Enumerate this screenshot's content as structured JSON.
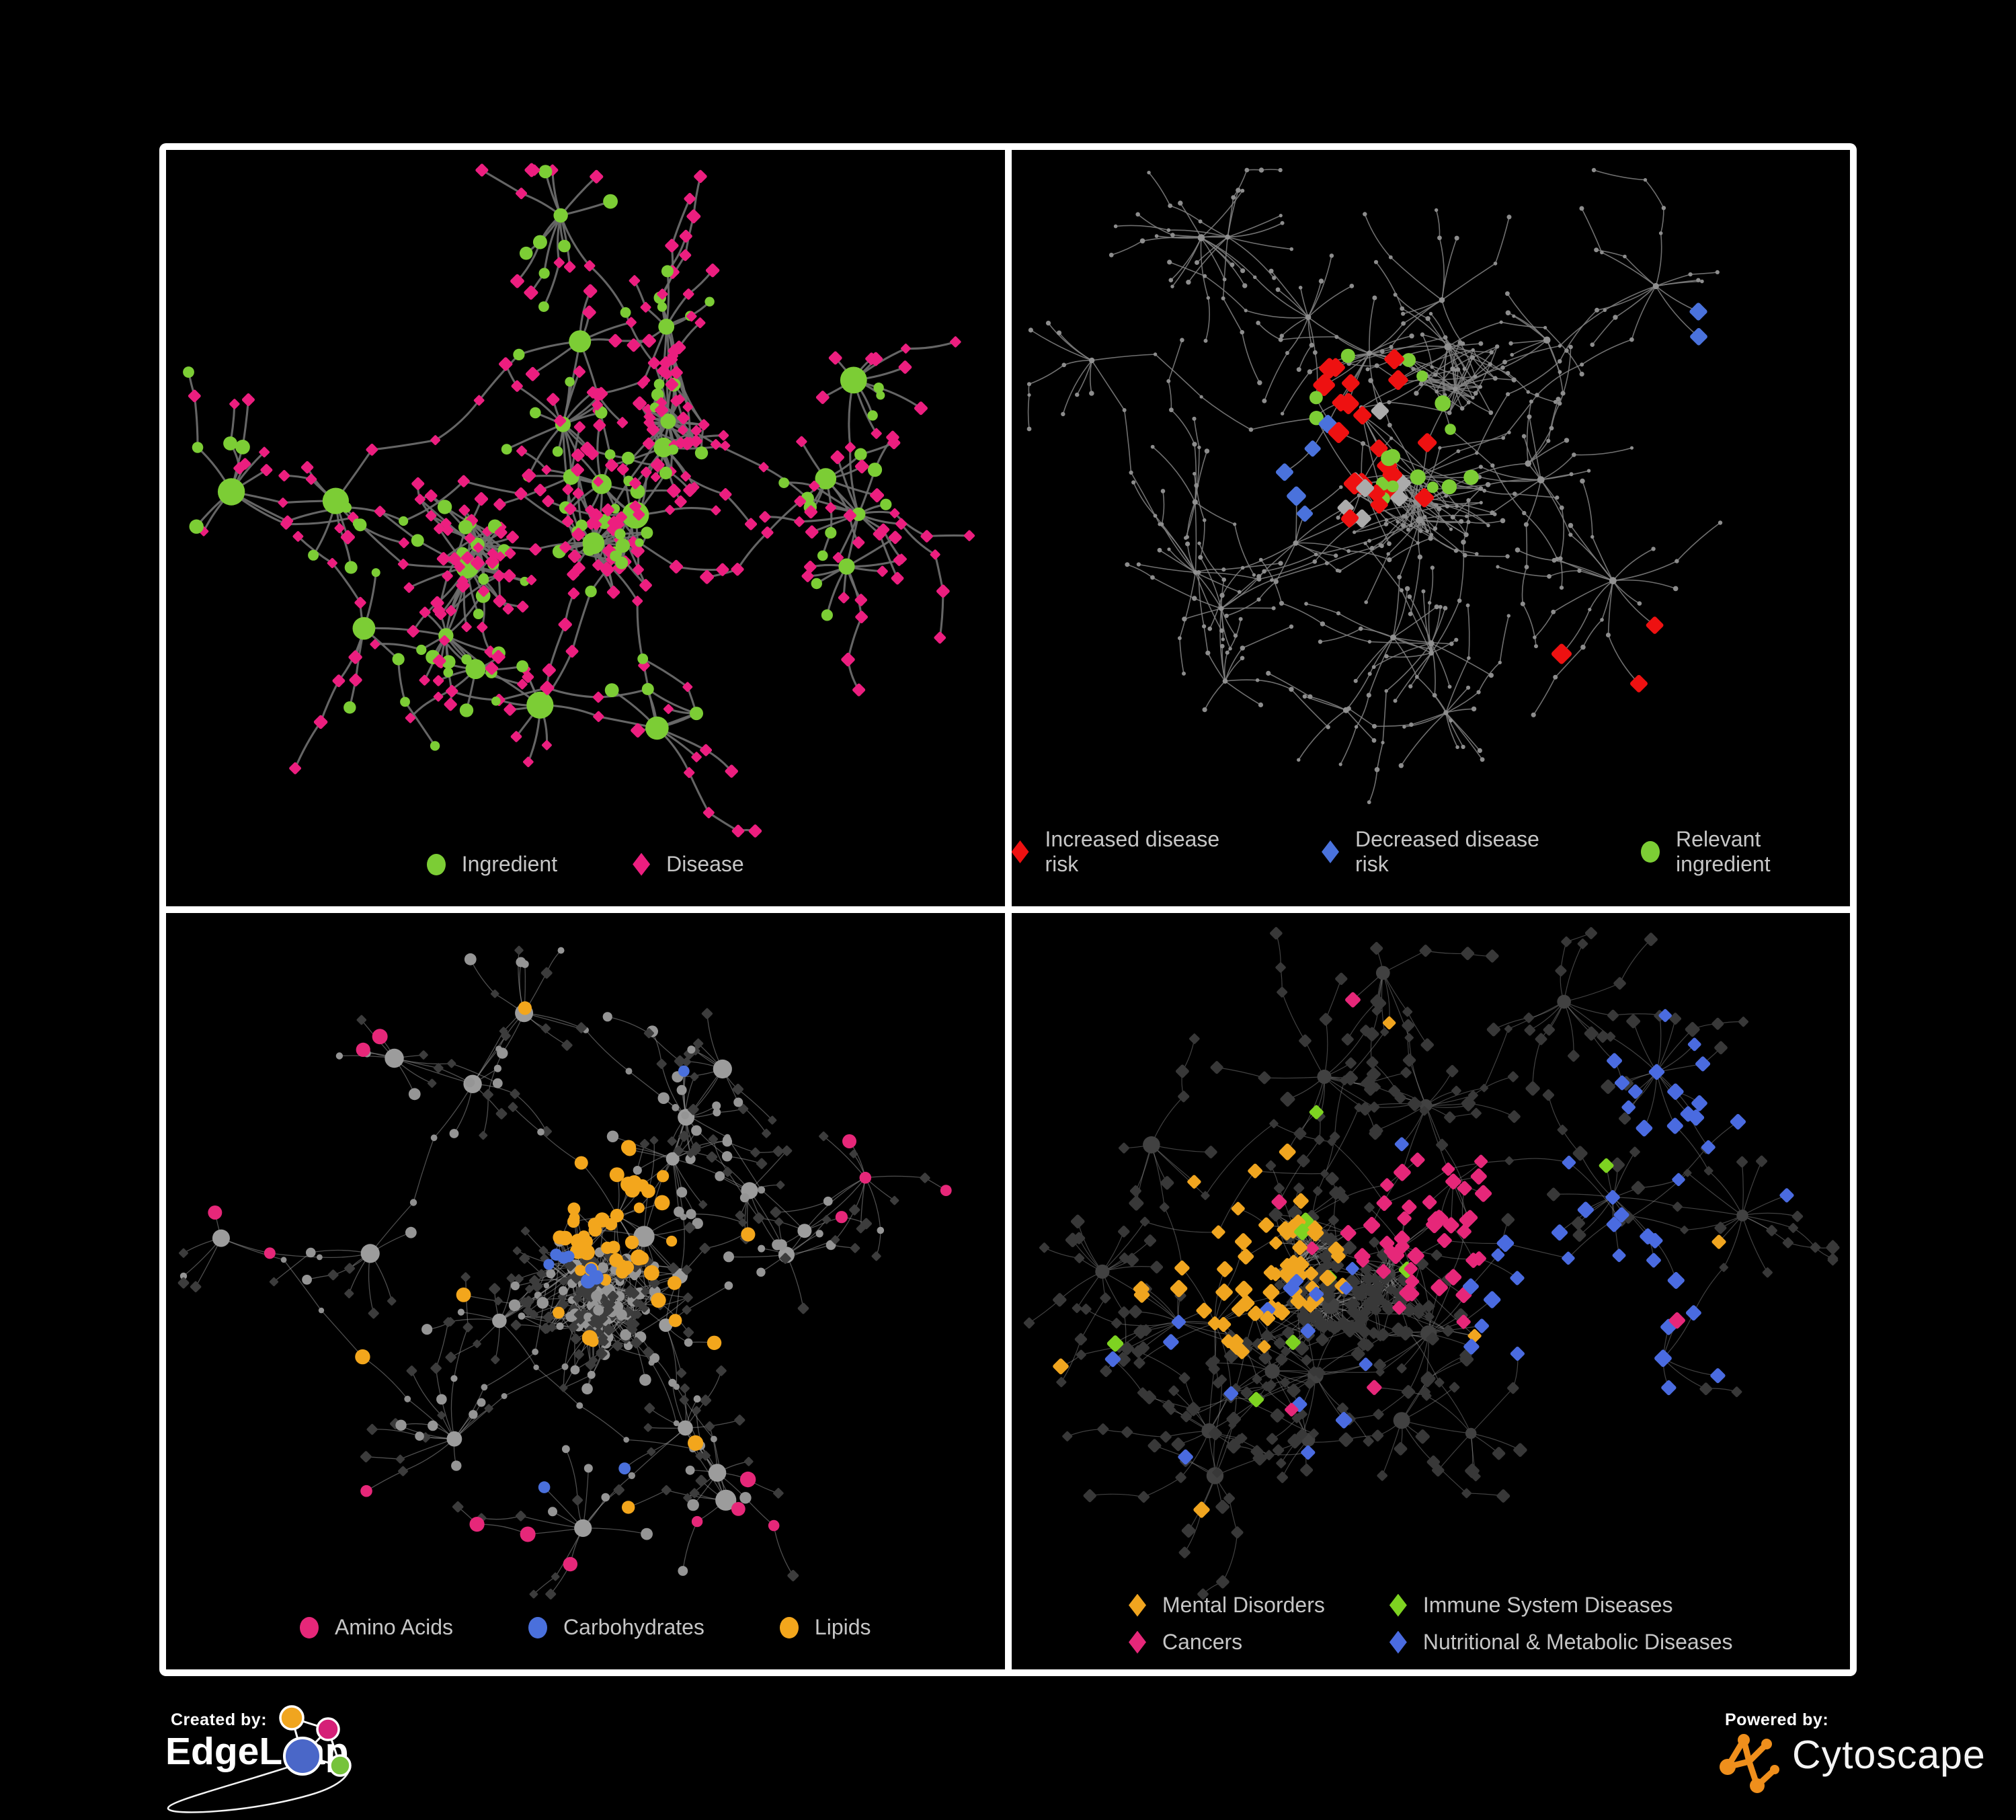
{
  "page": {
    "background": "#000000",
    "frame_color": "#ffffff",
    "legend_text_color": "#c6c6c6"
  },
  "footer": {
    "created_by": {
      "label": "Created by:",
      "brand": "EdgeLeap"
    },
    "powered_by": {
      "label": "Powered by:",
      "brand": "Cytoscape",
      "brand_color": "#ef8f1c"
    }
  },
  "chart_data": [
    {
      "type": "network",
      "position": "top-left",
      "description": "Ingredient-disease association network: green circle nodes are ingredients, pink diamond nodes are diseases, connected by gray edges in hub-and-spoke clusters.",
      "node_count_estimate": 570,
      "edge_count_estimate": 600,
      "legend_layout": "row",
      "legend": [
        {
          "label": "Ingredient",
          "shape": "circle",
          "color": "#7ccd35"
        },
        {
          "label": "Disease",
          "shape": "diamond",
          "color": "#ec1e7f"
        }
      ],
      "edge_style": {
        "color": "#6e6e6e",
        "width": 3.1,
        "opacity": 0.92
      },
      "node_styles": {
        "hub": {
          "shape": "circle",
          "color": "#7ccd35",
          "r": [
            10,
            21
          ]
        },
        "conn": [
          {
            "shape": "diamond",
            "color": "#ec1e7f",
            "r": [
              7.5,
              10
            ],
            "p": 0.7
          },
          {
            "shape": "circle",
            "color": "#7ccd35",
            "r": [
              6.5,
              10
            ],
            "p": 0.3
          }
        ],
        "leaf": [
          {
            "shape": "diamond",
            "color": "#ec1e7f",
            "r": [
              7.5,
              11
            ],
            "p": 0.74
          },
          {
            "shape": "circle",
            "color": "#7ccd35",
            "r": [
              6.5,
              11
            ],
            "p": 0.26
          }
        ]
      },
      "render": {
        "seed": 7,
        "clusters": 24,
        "dense_clusters": 3,
        "center": [
          0.49,
          0.44
        ],
        "spread": [
          0.43,
          0.37
        ],
        "step": 88,
        "leaf_radius": 66,
        "leaf_count": [
          3,
          15
        ],
        "chain_prob": 0.33,
        "dense_leaf_count": [
          22,
          38
        ]
      },
      "highlights": []
    },
    {
      "type": "network",
      "position": "top-right",
      "description": "Same network rendered faint gray with highlighted nodes: red diamonds mark increased disease risk, blue diamonds decreased disease risk, gray diamonds neutral, green circles relevant ingredients.",
      "node_count_estimate": 590,
      "edge_count_estimate": 620,
      "legend_layout": "row",
      "legend": [
        {
          "label": "Increased disease risk",
          "shape": "diamond",
          "color": "#ee1111"
        },
        {
          "label": "Decreased disease risk",
          "shape": "diamond",
          "color": "#4a72dc"
        },
        {
          "label": "Relevant ingredient",
          "shape": "circle",
          "color": "#7ccd35"
        }
      ],
      "edge_style": {
        "color": "#828282",
        "width": 1.6,
        "opacity": 0.85
      },
      "node_styles": {
        "hub": {
          "shape": "circle",
          "color": "#909090",
          "r": [
            3.5,
            5.5
          ]
        },
        "conn": {
          "shape": "circle",
          "color": "#8d8d8d",
          "r": [
            2.6,
            3.6
          ]
        },
        "leaf": {
          "shape": "circle",
          "color": "#8d8d8d",
          "r": [
            2.6,
            3.8
          ]
        }
      },
      "render": {
        "seed": 13,
        "clusters": 27,
        "dense_clusters": 2,
        "center": [
          0.46,
          0.42
        ],
        "spread": [
          0.44,
          0.4
        ],
        "step": 84,
        "leaf_radius": 74,
        "leaf_count": [
          3,
          14
        ],
        "chain_prob": 0.44,
        "dense_leaf_count": [
          20,
          34
        ]
      },
      "highlights": [
        {
          "shape": "diamond",
          "color": "#ee1111",
          "count": 22,
          "size": [
            13,
            17
          ],
          "hotspot": [
            0.4,
            0.38
          ],
          "radius": 380
        },
        {
          "shape": "diamond",
          "color": "#ee1111",
          "count": 3,
          "size": [
            13,
            16
          ],
          "hotspot": [
            0.78,
            0.74
          ],
          "radius": 200
        },
        {
          "shape": "diamond",
          "color": "#4a72dc",
          "count": 5,
          "size": [
            12,
            15
          ],
          "hotspot": [
            0.36,
            0.42
          ],
          "radius": 300
        },
        {
          "shape": "diamond",
          "color": "#4a72dc",
          "count": 2,
          "size": [
            13,
            15
          ],
          "hotspot": [
            0.85,
            0.27
          ],
          "radius": 160
        },
        {
          "shape": "diamond",
          "color": "#ababab",
          "count": 7,
          "size": [
            12,
            15
          ],
          "hotspot": [
            0.4,
            0.42
          ],
          "radius": 330
        },
        {
          "shape": "circle",
          "color": "#7ccd35",
          "count": 16,
          "size": [
            8,
            12
          ],
          "hotspot": [
            0.42,
            0.4
          ],
          "radius": 450
        }
      ]
    },
    {
      "type": "network",
      "position": "bottom-left",
      "description": "Same network with ingredient circles colored by nutrient class: pink = amino acids, blue = carbohydrates, orange = lipids; other ingredients gray circles, diseases small dark diamonds.",
      "node_count_estimate": 600,
      "edge_count_estimate": 640,
      "legend_layout": "row",
      "legend": [
        {
          "label": "Amino Acids",
          "shape": "circle",
          "color": "#e62779"
        },
        {
          "label": "Carbohydrates",
          "shape": "circle",
          "color": "#4a70dc"
        },
        {
          "label": "Lipids",
          "shape": "circle",
          "color": "#f3a61c"
        }
      ],
      "edge_style": {
        "color": "#9c9c9c",
        "width": 1.3,
        "opacity": 0.5
      },
      "node_styles": {
        "hub": {
          "shape": "circle",
          "color": "#9c9c9c",
          "r": [
            9,
            16
          ]
        },
        "conn": {
          "shape": "circle",
          "color": "#8f8f8f",
          "r": [
            4,
            5.5
          ]
        },
        "leaf": [
          {
            "shape": "diamond",
            "color": "#3c3c3c",
            "r": [
              6.5,
              9
            ],
            "p": 0.66
          },
          {
            "shape": "circle",
            "color": "#959595",
            "r": [
              5,
              9
            ],
            "p": 0.34
          }
        ]
      },
      "render": {
        "seed": 21,
        "clusters": 26,
        "dense_clusters": 3,
        "center": [
          0.47,
          0.45
        ],
        "spread": [
          0.43,
          0.37
        ],
        "step": 86,
        "leaf_radius": 68,
        "leaf_count": [
          3,
          15
        ],
        "chain_prob": 0.34,
        "dense_leaf_count": [
          24,
          44
        ]
      },
      "highlights": [
        {
          "shape": "circle",
          "color": "#f3a61c",
          "count": 42,
          "size": [
            8,
            12
          ],
          "hotspot": [
            0.53,
            0.38
          ],
          "radius": 150
        },
        {
          "shape": "circle",
          "color": "#f3a61c",
          "count": 14,
          "size": [
            8,
            12
          ]
        },
        {
          "shape": "circle",
          "color": "#4a70dc",
          "count": 7,
          "size": [
            7.5,
            11
          ],
          "hotspot": [
            0.5,
            0.42
          ],
          "radius": 170
        },
        {
          "shape": "circle",
          "color": "#4a70dc",
          "count": 3,
          "size": [
            7.5,
            11
          ]
        },
        {
          "shape": "circle",
          "color": "#e62779",
          "count": 16,
          "size": [
            8,
            12
          ],
          "periphery": 390
        }
      ]
    },
    {
      "type": "network",
      "position": "bottom-right",
      "description": "Same network with disease diamonds colored by disease class: orange = mental disorders (dense left cluster), pink = cancers (central cluster), green = immune system diseases, blue = nutritional & metabolic diseases; other nodes dark gray.",
      "node_count_estimate": 600,
      "edge_count_estimate": 640,
      "legend_layout": "grid-2col",
      "legend": [
        {
          "label": "Mental Disorders",
          "shape": "diamond",
          "color": "#f0a51f"
        },
        {
          "label": "Immune System Diseases",
          "shape": "diamond",
          "color": "#7ed321"
        },
        {
          "label": "Cancers",
          "shape": "diamond",
          "color": "#e62779"
        },
        {
          "label": "Nutritional & Metabolic Diseases",
          "shape": "diamond",
          "color": "#4a6be0"
        }
      ],
      "edge_style": {
        "color": "#9a9a9a",
        "width": 1.2,
        "opacity": 0.42
      },
      "node_styles": {
        "hub": {
          "shape": "circle",
          "color": "#414141",
          "r": [
            8,
            13
          ]
        },
        "conn": {
          "shape": "diamond",
          "color": "#383838",
          "r": [
            6,
            8
          ]
        },
        "leaf": {
          "shape": "diamond",
          "color": "#383838",
          "r": [
            7.5,
            11.5
          ]
        }
      },
      "render": {
        "seed": 29,
        "clusters": 27,
        "dense_clusters": 3,
        "center": [
          0.47,
          0.44
        ],
        "spread": [
          0.43,
          0.37
        ],
        "step": 86,
        "leaf_radius": 68,
        "leaf_count": [
          3,
          15
        ],
        "chain_prob": 0.34,
        "dense_leaf_count": [
          24,
          42
        ]
      },
      "highlights": [
        {
          "shape": "diamond",
          "color": "#f0a51f",
          "count": 62,
          "size": [
            10,
            13.5
          ],
          "hotspot": [
            0.26,
            0.46
          ],
          "radius": 175
        },
        {
          "shape": "diamond",
          "color": "#f0a51f",
          "count": 8,
          "size": [
            10,
            13
          ]
        },
        {
          "shape": "diamond",
          "color": "#e62779",
          "count": 42,
          "size": [
            10,
            13.5
          ],
          "hotspot": [
            0.5,
            0.4
          ],
          "radius": 160
        },
        {
          "shape": "diamond",
          "color": "#e62779",
          "count": 8,
          "size": [
            10,
            13
          ]
        },
        {
          "shape": "diamond",
          "color": "#4a6be0",
          "count": 24,
          "size": [
            10,
            13.5
          ],
          "hotspot": [
            0.7,
            0.55
          ],
          "radius": 150
        },
        {
          "shape": "diamond",
          "color": "#4a6be0",
          "count": 16,
          "size": [
            10,
            13.5
          ],
          "hotspot": [
            0.8,
            0.24
          ],
          "radius": 140
        },
        {
          "shape": "diamond",
          "color": "#4a6be0",
          "count": 20,
          "size": [
            10,
            13
          ]
        },
        {
          "shape": "diamond",
          "color": "#7ed321",
          "count": 9,
          "size": [
            10,
            13
          ]
        }
      ]
    }
  ]
}
